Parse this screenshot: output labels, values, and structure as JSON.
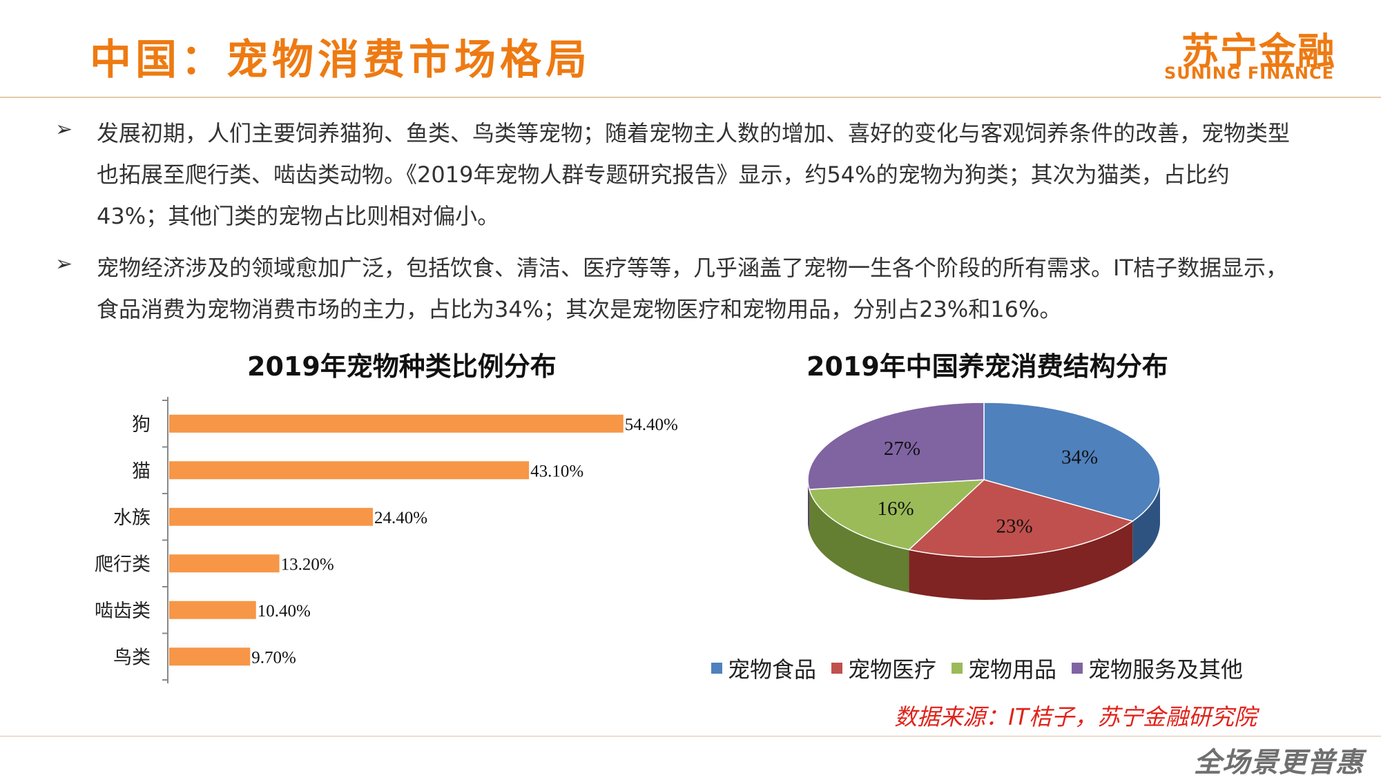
{
  "header": {
    "title": "中国：宠物消费市场格局",
    "logo_cn": "苏宁金融",
    "logo_en": "SUNING FINANCE"
  },
  "bullets": [
    {
      "marker": "➢",
      "text": "发展初期，人们主要饲养猫狗、鱼类、鸟类等宠物；随着宠物主人数的增加、喜好的变化与客观饲养条件的改善，宠物类型也拓展至爬行类、啮齿类动物。《2019年宠物人群专题研究报告》显示，约54%的宠物为狗类；其次为猫类，占比约43%；其他门类的宠物占比则相对偏小。"
    },
    {
      "marker": "➢",
      "text": "宠物经济涉及的领域愈加广泛，包括饮食、清洁、医疗等等，几乎涵盖了宠物一生各个阶段的所有需求。IT桔子数据显示，食品消费为宠物消费市场的主力，占比为34%；其次是宠物医疗和宠物用品，分别占23%和16%。"
    }
  ],
  "chart_data": [
    {
      "type": "bar",
      "orientation": "horizontal",
      "title": "2019年宠物种类比例分布",
      "categories": [
        "狗",
        "猫",
        "水族",
        "爬行类",
        "啮齿类",
        "鸟类"
      ],
      "values": [
        54.4,
        43.1,
        24.4,
        13.2,
        10.4,
        9.7
      ],
      "labels": [
        "54.40%",
        "43.10%",
        "24.40%",
        "13.20%",
        "10.40%",
        "9.70%"
      ],
      "unit": "%",
      "color": "#f79646",
      "xlim": [
        0,
        55
      ]
    },
    {
      "type": "pie",
      "title": "2019年中国养宠消费结构分布",
      "style": "3d",
      "categories": [
        "宠物食品",
        "宠物医疗",
        "宠物用品",
        "宠物服务及其他"
      ],
      "values": [
        34,
        23,
        16,
        27
      ],
      "labels": [
        "34%",
        "23%",
        "16%",
        "27%"
      ],
      "colors": [
        "#4f81bd",
        "#c0504d",
        "#9bbb59",
        "#8064a2"
      ],
      "dark_colors": [
        "#2f5381",
        "#7f2422",
        "#647f31",
        "#54406f"
      ],
      "legend_position": "bottom"
    }
  ],
  "footer": {
    "source": "数据来源：IT桔子，苏宁金融研究院",
    "slogan": "全场景更普惠"
  }
}
